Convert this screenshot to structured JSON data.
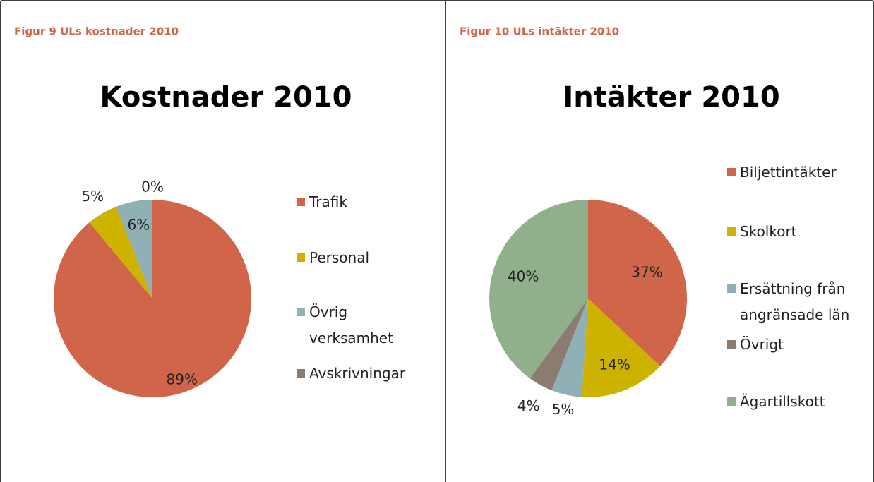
{
  "chart_data": [
    {
      "type": "pie",
      "caption": "Figur 9 ULs kostnader 2010",
      "title": "Kostnader 2010",
      "categories": [
        "Trafik",
        "Personal",
        "Övrig verksamhet",
        "Avskrivningar"
      ],
      "values": [
        89,
        5,
        6,
        0
      ],
      "value_labels": [
        "89%",
        "5%",
        "6%",
        "0%"
      ],
      "colors": [
        "#d0654a",
        "#cdb300",
        "#8fb1b5",
        "#8b7b70"
      ],
      "legend": "right"
    },
    {
      "type": "pie",
      "caption": "Figur 10 ULs intäkter 2010",
      "title": "Intäkter 2010",
      "categories": [
        "Biljettintäkter",
        "Skolkort",
        "Ersättning från angränsade län",
        "Övrigt",
        "Ägartillskott"
      ],
      "values": [
        37,
        14,
        5,
        4,
        40
      ],
      "value_labels": [
        "37%",
        "14%",
        "5%",
        "4%",
        "40%"
      ],
      "colors": [
        "#d0654a",
        "#cdb300",
        "#8fb1b5",
        "#8b7b70",
        "#8fb08a"
      ],
      "legend": "right"
    }
  ]
}
